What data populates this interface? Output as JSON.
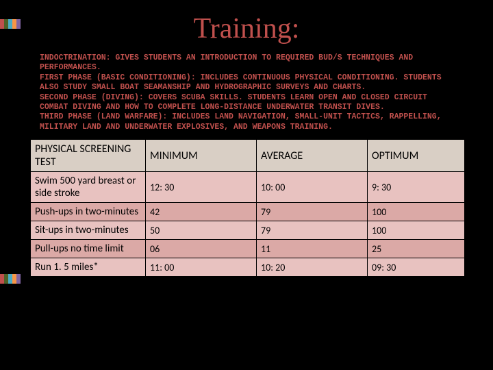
{
  "title": "Training:",
  "title_color": "#c0504d",
  "accent_bar_colors": [
    "#c0504d",
    "#4f6228",
    "#4bacc6",
    "#f79646",
    "#8064a2"
  ],
  "description_lines": [
    "INDOCTRINATION: GIVES STUDENTS AN INTRODUCTION TO REQUIRED BUD/S TECHNIQUES AND PERFORMANCES.",
    "FIRST PHASE (BASIC CONDITIONING): INCLUDES CONTINUOUS PHYSICAL CONDITIONING. STUDENTS ALSO STUDY SMALL BOAT SEAMANSHIP AND HYDROGRAPHIC SURVEYS AND CHARTS.",
    "SECOND PHASE (DIVING): COVERS SCUBA SKILLS. STUDENTS LEARN OPEN AND CLOSED CIRCUIT COMBAT DIVING AND HOW TO COMPLETE LONG-DISTANCE UNDERWATER TRANSIT DIVES.",
    "THIRD PHASE (LAND WARFARE): INCLUDES LAND NAVIGATION, SMALL-UNIT TACTICS, RAPPELLING, MILITARY LAND AND UNDERWATER EXPLOSIVES, AND WEAPONS TRAINING."
  ],
  "table": {
    "header_bg": "#d9cfc5",
    "row_bg_light": "#e8c2c0",
    "row_bg_dark": "#dba9a6",
    "columns": [
      "PHYSICAL SCREENING TEST",
      "MINIMUM",
      "AVERAGE",
      "OPTIMUM"
    ],
    "rows": [
      [
        "Swim 500 yard breast or side stroke",
        "12: 30",
        "10: 00",
        "9: 30"
      ],
      [
        "Push-ups in two-minutes",
        "42",
        "79",
        "100"
      ],
      [
        "Sit-ups in two-minutes",
        "50",
        "79",
        "100"
      ],
      [
        "Pull-ups no time limit",
        "06",
        "11",
        "25"
      ],
      [
        "Run 1. 5 miles*",
        "11: 00",
        "10: 20",
        "09: 30"
      ]
    ]
  }
}
